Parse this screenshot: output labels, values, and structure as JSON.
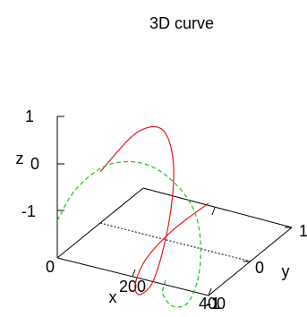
{
  "chart_data": {
    "type": "line",
    "title": "3D curve",
    "xlabel": "x",
    "ylabel": "y",
    "zlabel": "z",
    "x_ticks": [
      "0",
      "200",
      "400"
    ],
    "y_ticks": [
      "-1",
      "0",
      "1"
    ],
    "z_ticks": [
      "-1",
      "0",
      "1"
    ],
    "xlim": [
      0,
      400
    ],
    "ylim": [
      -1,
      1
    ],
    "zlim": [
      -1,
      1
    ],
    "grid": false,
    "series": [
      {
        "color": "#e41a1c",
        "dash": "solid",
        "x": [
          0,
          40,
          80,
          120,
          160,
          200,
          240,
          280,
          320,
          360,
          400
        ],
        "y": [
          0.0,
          0.59,
          0.95,
          0.95,
          0.59,
          0.0,
          -0.59,
          -0.95,
          -0.95,
          -0.59,
          0.0
        ],
        "z": [
          1.1,
          1.55,
          1.4,
          0.7,
          -0.2,
          -0.9,
          -0.75,
          -0.2,
          0.4,
          0.8,
          1.0
        ]
      },
      {
        "color": "#22c022",
        "dash": "dashed",
        "x": [
          0,
          40,
          80,
          120,
          160,
          200,
          240,
          280,
          320,
          360,
          400
        ],
        "y": [
          -1.0,
          -0.81,
          -0.31,
          0.31,
          0.81,
          1.0,
          0.81,
          0.31,
          -0.31,
          -0.81,
          -1.0
        ],
        "z": [
          0.8,
          1.4,
          1.6,
          1.2,
          0.4,
          -0.4,
          -1.2,
          -1.5,
          -1.1,
          -0.4,
          0.1
        ]
      }
    ]
  }
}
